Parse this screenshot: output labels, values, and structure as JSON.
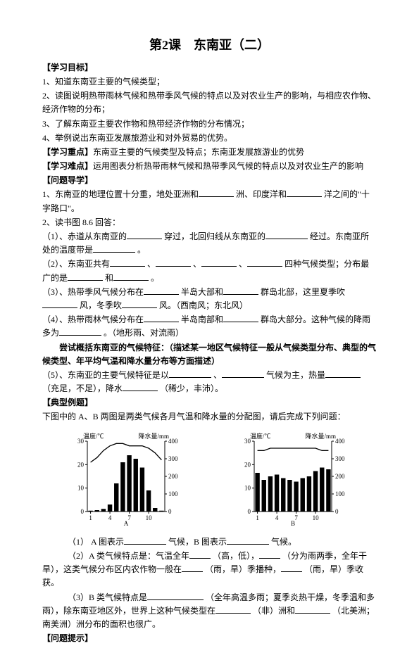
{
  "title": "第2课　东南亚（二）",
  "headings": {
    "goals": "【学习目标】",
    "keypoint": "【学习重点】",
    "difficulty": "【学习难点】",
    "guide": "【问题导学】",
    "example": "【典型例题】",
    "hint": "【问题提示】"
  },
  "goals": {
    "g1": "1、知道东南亚主要的气候类型；",
    "g2": "2、读图说明热带雨林气候和热带季风气候的特点以及对农业生产的影响，与相应农作物、经济作物的分布；",
    "g3": "3、了解东南亚主要农作物和热带经济作物的分布情况；",
    "g4": "4、举例说出东南亚发展旅游业和对外贸易的优势。"
  },
  "keypoint_text": "东南亚主要的气候类型及特点；东南亚发展旅游业的优势",
  "difficulty_text": "运用图表分析热带雨林气候和热带季风气候的特点以及对农业生产的影响",
  "guide": {
    "q1a": "1、东南亚的地理位置十分重，地处亚洲和",
    "q1b": "洲、印度洋和",
    "q1c": "洋之间的\"十字路口\"。",
    "q2": "2、读书图 8.6 回答：",
    "q21a": "（1）、赤道从东南亚的",
    "q21b": "穿过，北回归线从东南亚的",
    "q21c": "经过。东南亚所处的温度带是",
    "q21d": "。",
    "q22a": "（2）、东南亚共有",
    "q22b": "、",
    "q22c": "、",
    "q22d": "、",
    "q22e": "四种气候类型；分布最广的是",
    "q22f": "和",
    "q22g": "。",
    "q23a": "（3）、热带季风气候分布在",
    "q23b": "半岛大部和",
    "q23c": "群岛北部，这里夏季吹",
    "q23d": "风，冬季吹",
    "q23e": "风。（西南风；东北风）",
    "q24a": "（4）、热带雨林气候分布在",
    "q24b": "半岛南部和",
    "q24c": "群岛大部分。这种气候的降雨多为",
    "q24d": "。（地形雨、对流雨）",
    "tip": "尝试概括东南亚的气候特征：（描述某一地区气候特征一般从气候类型分布、典型的气候类型、年平均气温和降水量分布等方面描述）",
    "q25a": "（5）、东南亚的主要气候特征是以",
    "q25b": "、",
    "q25c": "气候为主，热量",
    "q25d": "（充足，不足），降水",
    "q25e": "（稀少，丰沛）。"
  },
  "example_intro": "下图中的 A、B 两图是两类气候各月气温和降水量的分配图，请后完成下列问题：",
  "questions": {
    "e1a": "（1） A 图表示",
    "e1b": "气候，B 图表示",
    "e1c": "气候。",
    "e2a": "（2）A 类气候特点是：气温全年",
    "e2b": "（高，低），",
    "e2c": "（分为雨两季，全年干旱），这类气候分布区内农作物一般在",
    "e2d": "（雨，旱）季播种，",
    "e2e": "（雨，旱）季收获。",
    "e3a": "（3）B 类气候特点是",
    "e3b": "（全年高温多雨；夏季炎热干燥，冬季温和多雨），除东南亚地区外，世界上这种气候类型在",
    "e3c": "（非）洲和",
    "e3d": "（北美洲；南美洲）洲分布的面积也很广。"
  },
  "chartA": {
    "label": "A",
    "temp_label": "温度/℃",
    "prec_label": "降水量/mm",
    "temp_axis": [
      0,
      10,
      20,
      30
    ],
    "prec_axis": [
      0,
      100,
      200,
      300,
      400
    ],
    "months": [
      "1",
      "4",
      "7",
      "10"
    ],
    "temp_values": [
      21,
      23,
      26,
      28,
      29,
      29,
      28,
      28,
      28,
      27,
      25,
      22
    ],
    "prec_values": [
      5,
      8,
      15,
      40,
      160,
      280,
      320,
      300,
      250,
      120,
      20,
      5
    ],
    "line_color": "#000000",
    "bar_color": "#000000",
    "bg": "#ffffff"
  },
  "chartB": {
    "label": "B",
    "temp_label": "温度/℃",
    "prec_label": "降水量/mm",
    "temp_axis": [
      0,
      10,
      20,
      30
    ],
    "prec_axis": [
      0,
      100,
      200,
      300,
      400
    ],
    "months": [
      "1",
      "4",
      "7",
      "10"
    ],
    "temp_values": [
      26,
      26,
      27,
      27,
      27,
      27,
      27,
      27,
      27,
      27,
      26,
      26
    ],
    "prec_values": [
      220,
      180,
      200,
      210,
      190,
      180,
      170,
      190,
      200,
      230,
      250,
      240
    ],
    "line_color": "#000000",
    "bar_color": "#000000",
    "bg": "#ffffff"
  }
}
